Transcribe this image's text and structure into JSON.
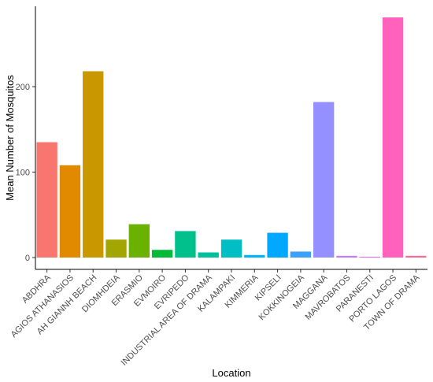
{
  "chart_data": {
    "type": "bar",
    "xlabel": "Location",
    "ylabel": "Mean Number of Mosquitos",
    "ylim": [
      0,
      290
    ],
    "yticks": [
      0,
      100,
      200
    ],
    "grid": false,
    "legend": "none",
    "categories": [
      "ABDHRA",
      "AGIOS ATHANASIOS",
      "AH GIANNH BEACH",
      "DIOMHDEIA",
      "ERASMIO",
      "EVMOIRO",
      "EVRIPEDO",
      "INDUSTRIAL AREA OF DRAMA",
      "KALAMPAKI",
      "KIMMERIA",
      "KIPSELI",
      "KOKKINOGEIA",
      "MAGGANA",
      "MAVROBATOS",
      "PARANESTI",
      "PORTO LAGOS",
      "TOWN OF DRAMA"
    ],
    "values": [
      135,
      108,
      218,
      21,
      39,
      9,
      31,
      6,
      21,
      3,
      29,
      7,
      182,
      2,
      1,
      281,
      2
    ],
    "colors": [
      "#F8766D",
      "#E18A00",
      "#C99800",
      "#A3A500",
      "#6BB100",
      "#00BA38",
      "#00C08B",
      "#00BF9D",
      "#00BFC4",
      "#00B4F0",
      "#00A9FF",
      "#3CA0FF",
      "#9590FF",
      "#C77CFF",
      "#E76BF3",
      "#FF62BC",
      "#FF6C91"
    ]
  }
}
